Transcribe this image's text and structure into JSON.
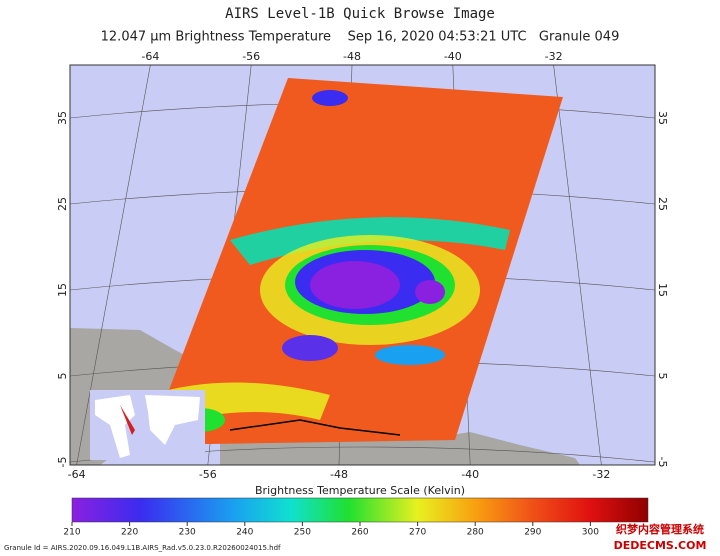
{
  "header": {
    "title": "AIRS Level-1B Quick Browse Image",
    "subtitle": "12.047 μm Brightness Temperature    Sep 16, 2020 04:53:21 UTC   Granule 049"
  },
  "map": {
    "lon_ticks": [
      -64,
      -56,
      -48,
      -40,
      -32
    ],
    "lat_ticks": [
      35,
      25,
      15,
      5,
      -5
    ]
  },
  "colorbar": {
    "title": "Brightness Temperature Scale (Kelvin)",
    "range": [
      210,
      310
    ],
    "ticks": [
      210,
      220,
      230,
      240,
      250,
      260,
      270,
      280,
      290,
      300
    ]
  },
  "footer": {
    "granule_id": "Granule Id = AIRS.2020.09.16.049.L1B.AIRS_Rad.v5.0.23.0.R20260024015.hdf",
    "watermark_1": "织梦内容管理系统",
    "watermark_2": "DEDECMS.COM"
  }
}
